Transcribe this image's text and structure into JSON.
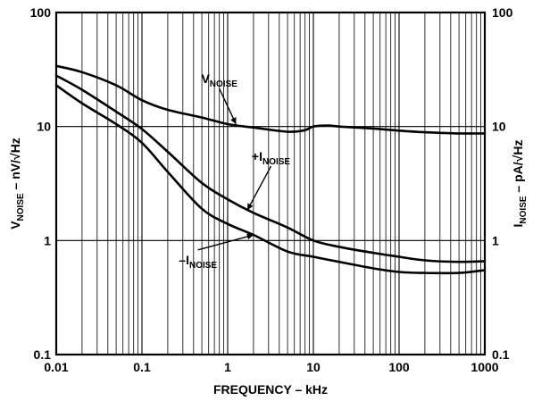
{
  "chart_data": {
    "type": "line",
    "x_scale": "log",
    "y_scale": "log",
    "xlim": [
      0.01,
      1000
    ],
    "ylim": [
      0.1,
      100
    ],
    "grid": true,
    "x_ticks": [
      "0.01",
      "0.1",
      "1",
      "10",
      "100",
      "1000"
    ],
    "y_ticks_left": [
      "0.1",
      "1",
      "10",
      "100"
    ],
    "y_ticks_right": [
      "0.1",
      "1",
      "10",
      "100"
    ],
    "xlabel": "FREQUENCY – kHz",
    "ylabel_left": {
      "main": "V",
      "sub": "NOISE",
      "rest": " – nV/√Hz"
    },
    "ylabel_right": {
      "main": "I",
      "sub": "NOISE",
      "rest": " – pA/√Hz"
    },
    "series": [
      {
        "name": "V_NOISE",
        "label": {
          "prefix": "",
          "main": "V",
          "sub": "NOISE"
        },
        "x": [
          0.01,
          0.02,
          0.05,
          0.1,
          0.2,
          0.5,
          1,
          2,
          5,
          8,
          10,
          15,
          20,
          50,
          100,
          200,
          500,
          1000
        ],
        "y": [
          34,
          30,
          23,
          17,
          14,
          12,
          10.5,
          9.8,
          9,
          9.3,
          10,
          10.2,
          10,
          9.6,
          9.2,
          8.9,
          8.7,
          8.7
        ]
      },
      {
        "name": "+I_NOISE",
        "label": {
          "prefix": "+",
          "main": "I",
          "sub": "NOISE"
        },
        "x": [
          0.01,
          0.02,
          0.05,
          0.1,
          0.2,
          0.5,
          1,
          2,
          5,
          10,
          20,
          50,
          100,
          200,
          500,
          1000
        ],
        "y": [
          28,
          21,
          13.5,
          9.5,
          6,
          3.2,
          2.3,
          1.75,
          1.3,
          1,
          0.88,
          0.78,
          0.72,
          0.67,
          0.65,
          0.66
        ]
      },
      {
        "name": "-I_NOISE",
        "label": {
          "prefix": "–",
          "main": "I",
          "sub": "NOISE"
        },
        "x": [
          0.01,
          0.02,
          0.05,
          0.1,
          0.2,
          0.5,
          1,
          2,
          5,
          10,
          20,
          50,
          100,
          200,
          500,
          1000
        ],
        "y": [
          23,
          16,
          10.5,
          7.2,
          4,
          1.9,
          1.4,
          1.12,
          0.8,
          0.72,
          0.65,
          0.57,
          0.53,
          0.52,
          0.52,
          0.55
        ]
      }
    ],
    "annotations": [
      {
        "series": "V_NOISE",
        "text_at": [
          0.8,
          24
        ],
        "point": [
          1.25,
          10.5
        ]
      },
      {
        "series": "+I_NOISE",
        "text_at": [
          3.2,
          5.0
        ],
        "point": [
          1.7,
          1.85
        ]
      },
      {
        "series": "-I_NOISE",
        "text_at": [
          0.45,
          0.62
        ],
        "point": [
          2.0,
          1.12
        ]
      }
    ]
  }
}
